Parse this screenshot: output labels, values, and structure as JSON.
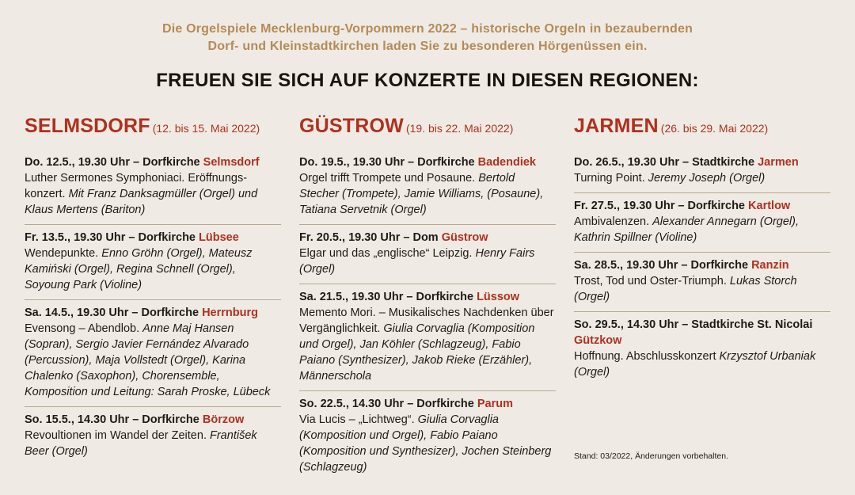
{
  "intro": {
    "line1": "Die Orgelspiele Mecklenburg-Vorpommern 2022 – historische Orgeln in bezaubernden",
    "line2": "Dorf- und Kleinstadtkirchen laden Sie zu besonderen Hörgenüssen ein."
  },
  "headline": "FREUEN SIE SICH AUF KONZERTE IN DIESEN REGIONEN:",
  "columns": [
    {
      "region": "SELMSDORF",
      "dates": "(12. bis 15. Mai 2022)",
      "events": [
        {
          "head": "Do. 12.5., 19.30 Uhr – Dorfkirche ",
          "venue": "Selmsdorf",
          "program": "Luther Sermones Symphoniaci. Eröffnungs-konzert. ",
          "performers": "Mit Franz Danksagmüller (Orgel) und Klaus Mertens (Bariton)"
        },
        {
          "head": "Fr. 13.5., 19.30 Uhr – Dorfkirche ",
          "venue": "Lübsee",
          "program": "Wendepunkte. ",
          "performers": "Enno Gröhn (Orgel), Mateusz Kamiński (Orgel), Regina Schnell (Orgel), Soyoung Park (Violine)"
        },
        {
          "head": "Sa. 14.5., 19.30 Uhr – Dorfkirche ",
          "venue": "Herrnburg",
          "program": "Evensong – Abendlob. ",
          "performers": "Anne Maj Hansen (Sopran), Sergio Javier Fernández Alvarado (Percussion), Maja Vollstedt (Orgel), Karina Chalenko (Saxophon), Chorensemble, Komposition und Leitung: Sarah Proske, Lübeck"
        },
        {
          "head": "So. 15.5., 14.30 Uhr – Dorfkirche ",
          "venue": "Börzow",
          "program": "Revoultionen im Wandel der Zeiten. ",
          "performers": "František Beer (Orgel)"
        }
      ]
    },
    {
      "region": "GÜSTROW",
      "dates": "(19. bis 22. Mai 2022)",
      "events": [
        {
          "head": "Do. 19.5., 19.30 Uhr – Dorfkirche ",
          "venue": "Badendiek",
          "program": "Orgel trifft Trompete und Posaune. ",
          "performers": "Bertold Stecher (Trompete), Jamie Williams, (Posaune), Tatiana Servetnik (Orgel)"
        },
        {
          "head": "Fr. 20.5., 19.30 Uhr – Dom ",
          "venue": "Güstrow",
          "program": "Elgar und das „englische“ Leipzig. ",
          "performers": "Henry Fairs (Orgel)"
        },
        {
          "head": "Sa. 21.5., 19.30 Uhr – Dorfkirche ",
          "venue": "Lüssow",
          "program": "Memento Mori. – Musikalisches Nachdenken über Vergänglichkeit. ",
          "performers": "Giulia Corvaglia (Komposition und Orgel), Jan Köhler (Schlagzeug), Fabio Paiano (Synthesizer), Jakob Rieke (Erzähler), Männerschola"
        },
        {
          "head": "So. 22.5., 14.30 Uhr – Dorfkirche ",
          "venue": "Parum",
          "program": "Via Lucis – „Lichtweg“. ",
          "performers": "Giulia Corvaglia (Komposition und Orgel), Fabio Paiano (Komposition und Synthesizer), Jochen Steinberg (Schlagzeug)"
        }
      ]
    },
    {
      "region": "JARMEN",
      "dates": "(26. bis 29. Mai 2022)",
      "events": [
        {
          "head": "Do. 26.5., 19.30 Uhr – Stadtkirche ",
          "venue": "Jarmen",
          "program": "Turning Point. ",
          "performers": "Jeremy Joseph (Orgel)"
        },
        {
          "head": "Fr. 27.5., 19.30 Uhr – Dorfkirche ",
          "venue": "Kartlow",
          "program": "Ambivalenzen. ",
          "performers": "Alexander Annegarn (Orgel), Kathrin Spillner (Violine)"
        },
        {
          "head": "Sa. 28.5., 19.30 Uhr – Dorfkirche ",
          "venue": "Ranzin",
          "program": "Trost, Tod und Oster-Triumph. ",
          "performers": "Lukas Storch (Orgel)"
        },
        {
          "head": "So. 29.5., 14.30 Uhr – Stadtkirche St. Nicolai ",
          "venue": "Gützkow",
          "program": "Hoffnung. Abschlusskonzert ",
          "performers": "Krzysztof Urbaniak (Orgel)"
        }
      ]
    }
  ],
  "footnote": "Stand: 03/2022, Änderungen vorbehalten."
}
